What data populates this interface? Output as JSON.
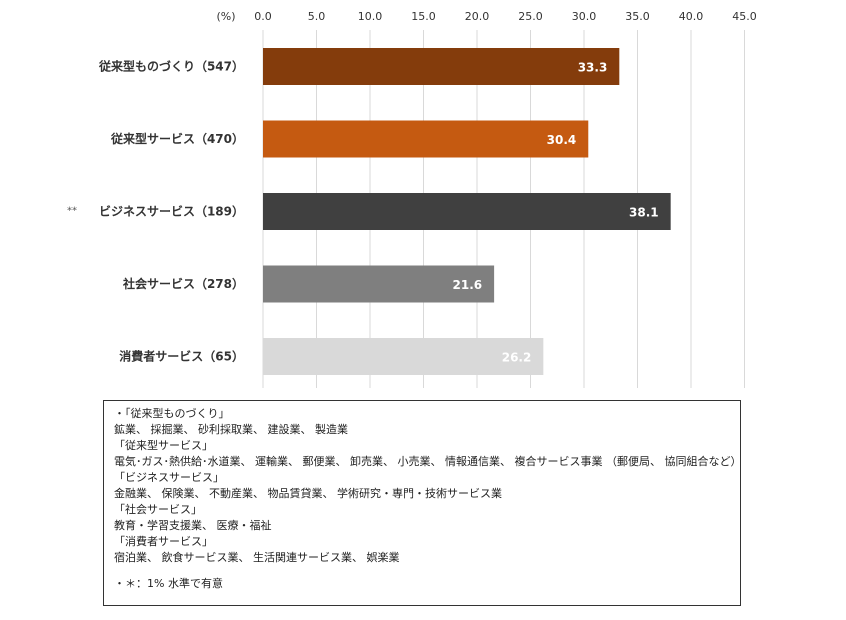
{
  "chart_data": {
    "type": "bar",
    "orientation": "horizontal",
    "unit_label": "(%)",
    "xlim": [
      0,
      45
    ],
    "ticks": [
      "0.0",
      "5.0",
      "10.0",
      "15.0",
      "20.0",
      "25.0",
      "30.0",
      "35.0",
      "40.0",
      "45.0"
    ],
    "grid": true,
    "categories": [
      "従来型ものづくり（547）",
      "従来型サービス（470）",
      "ビジネスサービス（189）",
      "社会サービス（278）",
      "消費者サービス（65）"
    ],
    "values": [
      33.3,
      30.4,
      38.1,
      21.6,
      26.2
    ],
    "value_labels": [
      "33.3",
      "30.4",
      "38.1",
      "21.6",
      "26.2"
    ],
    "colors": [
      "#843c0c",
      "#c55a11",
      "#404040",
      "#7f7f7f",
      "#d9d9d9"
    ],
    "significance_marks": [
      "",
      "",
      "**",
      "",
      ""
    ]
  },
  "notes": {
    "lines": [
      "・「従来型ものづくり」",
      "鉱業、 採掘業、 砂利採取業、 建設業、 製造業",
      "「従来型サービス」",
      "電気･ガス･熱供給･水道業、 運輸業、 郵便業、 卸売業、 小売業、 情報通信業、 複合サービス事業 （郵便局、 協同組合など）",
      "「ビジネスサービス」",
      "金融業、 保険業、 不動産業、 物品賃貸業、 学術研究・専門・技術サービス業",
      "「社会サービス」",
      "教育・学習支援業、 医療・福祉",
      "「消費者サービス」",
      "宿泊業、 飲食サービス業、 生活関連サービス業、 娯楽業"
    ],
    "significance": "・＊：1% 水準で有意"
  }
}
